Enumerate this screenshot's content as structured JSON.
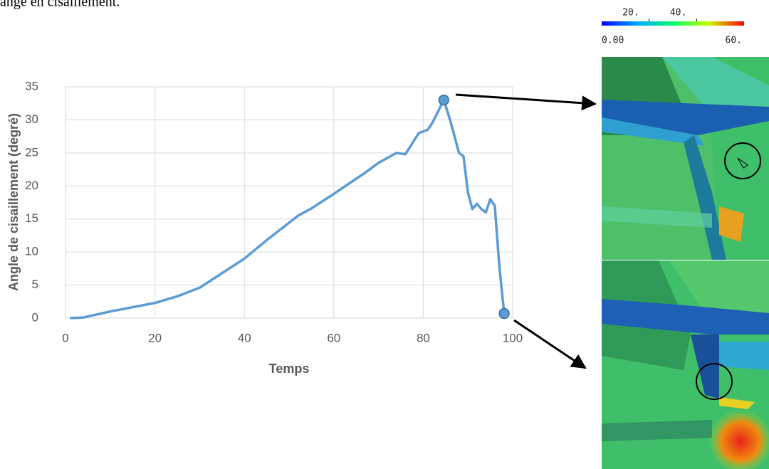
{
  "caption": "ange en cisaillement.",
  "chart_data": {
    "type": "line",
    "x_label": "Temps",
    "y_label": "Angle de cisaillement (degré)",
    "x": [
      1,
      4,
      10,
      20,
      25,
      30,
      35,
      40,
      45,
      52,
      55,
      60,
      67,
      70,
      74,
      76,
      79,
      81,
      82,
      84.6,
      86,
      88,
      89,
      90,
      91,
      92,
      93,
      94,
      95,
      96,
      97,
      98.1
    ],
    "series": [
      {
        "color": "#5b9bd5",
        "values": [
          0,
          0.1,
          1,
          2.3,
          3.3,
          4.6,
          6.8,
          9,
          11.8,
          15.5,
          16.6,
          18.8,
          22,
          23.5,
          25,
          24.8,
          28,
          28.5,
          29.5,
          33,
          30,
          25,
          24.5,
          19,
          16.5,
          17.3,
          16.5,
          16,
          18,
          17,
          8,
          0.7
        ]
      }
    ],
    "highlighted_points": {
      "x": [
        84.6,
        98.1
      ],
      "values": [
        33,
        0.7
      ]
    },
    "xlim": [
      0,
      100
    ],
    "xticks": [
      0,
      20,
      40,
      60,
      80,
      100
    ],
    "ylim": [
      0,
      35
    ],
    "yticks": [
      0,
      5,
      10,
      15,
      20,
      25,
      30,
      35
    ],
    "grid": true
  },
  "colorbar": {
    "range": [
      {
        "value": 0,
        "label": "0.00"
      },
      {
        "value": 60,
        "label": "60."
      }
    ],
    "ticks": [
      {
        "value": 20,
        "label": "20."
      },
      {
        "value": 40,
        "label": "40."
      }
    ]
  }
}
